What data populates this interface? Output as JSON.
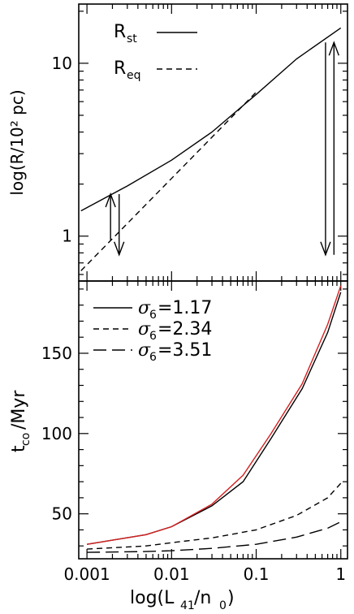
{
  "chart_data": [
    {
      "type": "line",
      "panel": "top",
      "ylabel": "log(R/10² pc)",
      "xscale": "log",
      "yscale": "log",
      "xlim": [
        0.0008,
        1.2
      ],
      "ylim": [
        0.55,
        22
      ],
      "yticklabels": [
        {
          "v": 1,
          "label": "1"
        },
        {
          "v": 10,
          "label": "10"
        }
      ],
      "legend_placement": "top-right",
      "series": [
        {
          "name": "R_st",
          "legend": {
            "main": "R",
            "sub": "st"
          },
          "dash": "solid",
          "x": [
            0.00085,
            0.003,
            0.01,
            0.03,
            0.1,
            0.3,
            1.0
          ],
          "y": [
            1.4,
            1.95,
            2.75,
            4.0,
            6.6,
            10.6,
            16.0
          ]
        },
        {
          "name": "R_eq",
          "legend": {
            "main": "R",
            "sub": "eq"
          },
          "dash": "dashed",
          "x": [
            0.00085,
            0.1
          ],
          "y": [
            0.63,
            6.8
          ]
        }
      ],
      "arrows": [
        {
          "x": 0.0019,
          "from": 0.95,
          "to": 1.75
        },
        {
          "x": 0.0024,
          "from": 1.75,
          "to": 0.78
        },
        {
          "x": 0.66,
          "from": 13.2,
          "to": 0.78
        },
        {
          "x": 0.83,
          "from": 0.78,
          "to": 13.2
        }
      ]
    },
    {
      "type": "line",
      "panel": "bottom",
      "xlabel": {
        "main": "log(L",
        "sub1": "41",
        "mid": "/n",
        "sub2": "0",
        "end": ")"
      },
      "ylabel": {
        "main": "t",
        "sub": "co",
        "end": "/Myr"
      },
      "xscale": "log",
      "xlim": [
        0.0008,
        1.2
      ],
      "ylim": [
        22,
        195
      ],
      "xticklabels": [
        {
          "v": 0.001,
          "label": "0.001"
        },
        {
          "v": 0.01,
          "label": "0.01"
        },
        {
          "v": 0.1,
          "label": "0.1"
        },
        {
          "v": 1,
          "label": "1"
        }
      ],
      "yticklabels": [
        {
          "v": 50,
          "label": "50"
        },
        {
          "v": 100,
          "label": "100"
        },
        {
          "v": 150,
          "label": "150"
        }
      ],
      "legend_placement": "top-left",
      "series": [
        {
          "name": "σ6=1.17",
          "legend": {
            "sym": "σ",
            "sub": "6",
            "rest": "=1.17"
          },
          "dash": "solid",
          "x": [
            0.001,
            0.005,
            0.01,
            0.03,
            0.07,
            0.15,
            0.35,
            0.7,
            1.0
          ],
          "y": [
            31,
            37,
            42,
            55,
            70,
            97,
            128,
            163,
            188
          ]
        },
        {
          "name": "",
          "dash": "solid",
          "color": "#d42020",
          "x": [
            0.001,
            0.005,
            0.01,
            0.03,
            0.07,
            0.15,
            0.35,
            0.7,
            1.0
          ],
          "y": [
            31,
            37,
            42,
            56,
            74,
            100,
            131,
            168,
            192
          ]
        },
        {
          "name": "σ6=2.34",
          "legend": {
            "sym": "σ",
            "sub": "6",
            "rest": "=2.34"
          },
          "dash": "dashed",
          "x": [
            0.001,
            0.005,
            0.01,
            0.03,
            0.1,
            0.3,
            0.7,
            1.0
          ],
          "y": [
            28,
            30,
            32,
            35,
            40,
            49,
            60,
            69
          ]
        },
        {
          "name": "σ6=3.51",
          "legend": {
            "sym": "σ",
            "sub": "6",
            "rest": "=3.51"
          },
          "dash": "longdash",
          "x": [
            0.001,
            0.005,
            0.01,
            0.03,
            0.1,
            0.3,
            0.7,
            1.0
          ],
          "y": [
            26,
            26.5,
            27,
            28.5,
            31,
            35.5,
            41,
            45
          ]
        }
      ]
    }
  ]
}
